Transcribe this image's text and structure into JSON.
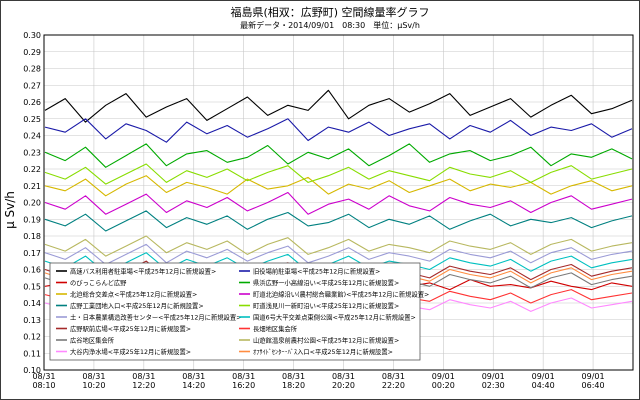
{
  "chart_data": {
    "type": "line",
    "title": "福島県(相双：広野町) 空間線量率グラフ",
    "subtitle": "最新データ・2014/09/01　08:30　単位：μSv/h",
    "ylabel": "μ Sv/h",
    "xlabel": "",
    "ylim": [
      0.1,
      0.3
    ],
    "yticks": [
      "0.10",
      "0.11",
      "0.12",
      "0.13",
      "0.14",
      "0.15",
      "0.16",
      "0.17",
      "0.18",
      "0.19",
      "0.20",
      "0.21",
      "0.22",
      "0.23",
      "0.24",
      "0.25",
      "0.26",
      "0.27",
      "0.28",
      "0.29",
      "0.30"
    ],
    "x_tick_labels": [
      {
        "date": "08/31",
        "time": "08:10"
      },
      {
        "date": "08/31",
        "time": "10:20"
      },
      {
        "date": "08/31",
        "time": "12:20"
      },
      {
        "date": "08/31",
        "time": "14:20"
      },
      {
        "date": "08/31",
        "time": "16:20"
      },
      {
        "date": "08/31",
        "time": "18:20"
      },
      {
        "date": "08/31",
        "time": "20:20"
      },
      {
        "date": "08/31",
        "time": "22:20"
      },
      {
        "date": "09/01",
        "time": "00:20"
      },
      {
        "date": "09/01",
        "time": "02:30"
      },
      {
        "date": "09/01",
        "time": "04:40"
      },
      {
        "date": "09/01",
        "time": "06:40"
      }
    ],
    "grid": true,
    "legend_position": "bottom-left",
    "series": [
      {
        "name": "高速バス利用者駐車場<平成25年12月に新規設置>",
        "color": "#000000",
        "values": [
          0.255,
          0.262,
          0.248,
          0.258,
          0.265,
          0.251,
          0.257,
          0.262,
          0.249,
          0.256,
          0.263,
          0.252,
          0.258,
          0.255,
          0.267,
          0.25,
          0.258,
          0.262,
          0.254,
          0.259,
          0.265,
          0.252,
          0.257,
          0.262,
          0.251,
          0.258,
          0.264,
          0.253,
          0.256,
          0.261
        ]
      },
      {
        "name": "旧役場前駐車場<平成25年12月に新規設置>",
        "color": "#1a1aa8",
        "values": [
          0.245,
          0.242,
          0.25,
          0.238,
          0.247,
          0.243,
          0.236,
          0.248,
          0.241,
          0.246,
          0.239,
          0.244,
          0.25,
          0.237,
          0.245,
          0.242,
          0.248,
          0.24,
          0.244,
          0.247,
          0.238,
          0.246,
          0.242,
          0.249,
          0.24,
          0.245,
          0.243,
          0.247,
          0.239,
          0.244
        ]
      },
      {
        "name": "のびっこらんど広野",
        "color": "#d00000",
        "values": [
          0.15,
          0.152,
          0.148,
          0.155,
          0.15,
          0.147,
          0.153,
          0.151,
          0.149,
          0.154,
          0.15,
          0.148,
          0.152,
          0.155,
          0.149,
          0.151,
          0.147,
          0.153,
          0.15,
          0.152,
          0.148,
          0.154,
          0.15,
          0.151,
          0.149,
          0.153,
          0.15,
          0.148,
          0.152,
          0.15
        ]
      },
      {
        "name": "県浜広野一小高線沿い<平成25年12月に新規設置>",
        "color": "#00aa00",
        "values": [
          0.23,
          0.225,
          0.233,
          0.221,
          0.228,
          0.235,
          0.222,
          0.229,
          0.231,
          0.224,
          0.227,
          0.234,
          0.223,
          0.23,
          0.226,
          0.232,
          0.222,
          0.228,
          0.235,
          0.224,
          0.229,
          0.231,
          0.225,
          0.228,
          0.233,
          0.222,
          0.229,
          0.227,
          0.232,
          0.226
        ]
      },
      {
        "name": "北迫総合交差点<平成25年12月に新規設置>",
        "color": "#d6b800",
        "values": [
          0.21,
          0.207,
          0.214,
          0.204,
          0.211,
          0.216,
          0.206,
          0.212,
          0.209,
          0.205,
          0.214,
          0.208,
          0.21,
          0.215,
          0.205,
          0.211,
          0.208,
          0.213,
          0.206,
          0.21,
          0.214,
          0.207,
          0.211,
          0.209,
          0.212,
          0.205,
          0.21,
          0.213,
          0.207,
          0.21
        ]
      },
      {
        "name": "町道北迫線沿い(農村総合職業館)<平成25年12月に新規設置>",
        "color": "#cc00cc",
        "values": [
          0.2,
          0.196,
          0.204,
          0.193,
          0.199,
          0.205,
          0.194,
          0.201,
          0.197,
          0.203,
          0.195,
          0.2,
          0.206,
          0.193,
          0.199,
          0.202,
          0.196,
          0.204,
          0.198,
          0.195,
          0.203,
          0.199,
          0.197,
          0.201,
          0.194,
          0.2,
          0.204,
          0.196,
          0.199,
          0.202
        ]
      },
      {
        "name": "広野工業団地入口<平成25年12月に新規設置>",
        "color": "#008080",
        "values": [
          0.19,
          0.186,
          0.193,
          0.183,
          0.189,
          0.195,
          0.185,
          0.191,
          0.187,
          0.192,
          0.184,
          0.19,
          0.194,
          0.186,
          0.188,
          0.193,
          0.185,
          0.19,
          0.187,
          0.192,
          0.184,
          0.189,
          0.193,
          0.186,
          0.19,
          0.188,
          0.191,
          0.185,
          0.189,
          0.192
        ]
      },
      {
        "name": "町道浅見川一新町沿い<平成25年12月に新規設置>",
        "color": "#88dd00",
        "values": [
          0.218,
          0.214,
          0.221,
          0.211,
          0.217,
          0.223,
          0.212,
          0.219,
          0.215,
          0.22,
          0.213,
          0.218,
          0.222,
          0.212,
          0.216,
          0.221,
          0.214,
          0.219,
          0.216,
          0.213,
          0.221,
          0.217,
          0.215,
          0.219,
          0.212,
          0.218,
          0.222,
          0.214,
          0.217,
          0.22
        ]
      },
      {
        "name": "土・日本農業構造改善センター<平成25年12月に新規設置>",
        "color": "#9b9bd6",
        "values": [
          0.17,
          0.166,
          0.173,
          0.163,
          0.169,
          0.175,
          0.164,
          0.171,
          0.167,
          0.172,
          0.165,
          0.17,
          0.174,
          0.164,
          0.168,
          0.173,
          0.166,
          0.17,
          0.168,
          0.165,
          0.172,
          0.169,
          0.167,
          0.171,
          0.164,
          0.17,
          0.173,
          0.166,
          0.169,
          0.171
        ]
      },
      {
        "name": "国道6号大平交差点東側公園<平成25年12月に新規設置>",
        "color": "#00c0c0",
        "values": [
          0.165,
          0.161,
          0.168,
          0.158,
          0.164,
          0.17,
          0.16,
          0.166,
          0.162,
          0.167,
          0.16,
          0.165,
          0.169,
          0.159,
          0.163,
          0.168,
          0.161,
          0.165,
          0.163,
          0.16,
          0.167,
          0.164,
          0.162,
          0.166,
          0.159,
          0.165,
          0.168,
          0.161,
          0.164,
          0.166
        ]
      },
      {
        "name": "広野駅前広場<平成25年12月に新規設置>",
        "color": "#a52a2a",
        "values": [
          0.16,
          0.156,
          0.163,
          0.153,
          0.159,
          0.165,
          0.155,
          0.161,
          0.157,
          0.162,
          0.154,
          0.16,
          0.164,
          0.154,
          0.158,
          0.163,
          0.156,
          0.16,
          0.158,
          0.155,
          0.162,
          0.159,
          0.157,
          0.161,
          0.154,
          0.16,
          0.163,
          0.156,
          0.159,
          0.161
        ]
      },
      {
        "name": "長畑地区集会所",
        "color": "#ff3333",
        "values": [
          0.145,
          0.142,
          0.148,
          0.139,
          0.144,
          0.15,
          0.141,
          0.146,
          0.143,
          0.147,
          0.14,
          0.145,
          0.149,
          0.14,
          0.144,
          0.148,
          0.142,
          0.145,
          0.143,
          0.141,
          0.147,
          0.144,
          0.142,
          0.146,
          0.14,
          0.145,
          0.148,
          0.142,
          0.144,
          0.146
        ]
      },
      {
        "name": "広谷地区集会所",
        "color": "#7a7a7a",
        "values": [
          0.155,
          0.151,
          0.158,
          0.148,
          0.154,
          0.16,
          0.15,
          0.156,
          0.152,
          0.157,
          0.149,
          0.155,
          0.159,
          0.149,
          0.153,
          0.158,
          0.151,
          0.155,
          0.153,
          0.15,
          0.157,
          0.154,
          0.152,
          0.156,
          0.149,
          0.155,
          0.158,
          0.151,
          0.154,
          0.156
        ]
      },
      {
        "name": "山遊館温泉前農村公園<平成25年12月に新規設置>",
        "color": "#b8b860",
        "values": [
          0.175,
          0.171,
          0.178,
          0.168,
          0.174,
          0.18,
          0.17,
          0.176,
          0.172,
          0.177,
          0.169,
          0.175,
          0.179,
          0.169,
          0.173,
          0.178,
          0.171,
          0.175,
          0.173,
          0.17,
          0.177,
          0.174,
          0.172,
          0.176,
          0.169,
          0.175,
          0.178,
          0.171,
          0.174,
          0.176
        ]
      },
      {
        "name": "大谷内浄水場<平成25年12月に新規設置>",
        "color": "#ff88ff",
        "values": [
          0.14,
          0.137,
          0.143,
          0.134,
          0.139,
          0.145,
          0.135,
          0.141,
          0.138,
          0.142,
          0.136,
          0.14,
          0.144,
          0.135,
          0.139,
          0.143,
          0.137,
          0.14,
          0.138,
          0.136,
          0.142,
          0.139,
          0.137,
          0.141,
          0.135,
          0.14,
          0.143,
          0.137,
          0.139,
          0.141
        ]
      },
      {
        "name": "ｵﾌｻｲﾄﾞｾﾝﾀｰ･ﾊﾞｽ入口<平成25年12月に新規設置>",
        "color": "#ff8c40",
        "values": [
          0.158,
          0.154,
          0.161,
          0.151,
          0.157,
          0.163,
          0.153,
          0.159,
          0.155,
          0.16,
          0.152,
          0.158,
          0.162,
          0.152,
          0.156,
          0.161,
          0.154,
          0.158,
          0.156,
          0.153,
          0.16,
          0.157,
          0.155,
          0.159,
          0.152,
          0.158,
          0.161,
          0.154,
          0.157,
          0.159
        ]
      }
    ]
  }
}
